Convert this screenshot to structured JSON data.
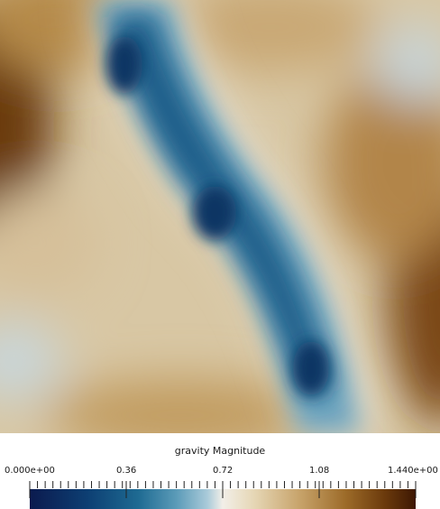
{
  "scalar_bar": {
    "title": "gravity Magnitude",
    "range": [
      0,
      1.44
    ],
    "labels": [
      "0.000e+00",
      "0.36",
      "0.72",
      "1.08",
      "1.440e+00"
    ],
    "label_values": [
      0,
      0.36,
      0.72,
      1.08,
      1.44
    ],
    "colormap_stops": [
      {
        "value": 0.0,
        "color": "#0b1a4e"
      },
      {
        "value": 0.15,
        "color": "#0d3f73"
      },
      {
        "value": 0.28,
        "color": "#1e6a92"
      },
      {
        "value": 0.38,
        "color": "#5b9bb8"
      },
      {
        "value": 0.46,
        "color": "#a9cad9"
      },
      {
        "value": 0.5,
        "color": "#f2efe8"
      },
      {
        "value": 0.58,
        "color": "#e6d7b6"
      },
      {
        "value": 0.7,
        "color": "#c7a36a"
      },
      {
        "value": 0.82,
        "color": "#9c6a28"
      },
      {
        "value": 0.92,
        "color": "#6b3a0c"
      },
      {
        "value": 1.0,
        "color": "#3d1703"
      }
    ]
  }
}
